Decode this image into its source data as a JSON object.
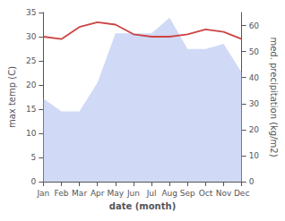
{
  "chart_data": {
    "type": "line",
    "categories": [
      "Jan",
      "Feb",
      "Mar",
      "Apr",
      "May",
      "Jun",
      "Jul",
      "Aug",
      "Sep",
      "Oct",
      "Nov",
      "Dec"
    ],
    "series": [
      {
        "type": "area",
        "axis": "y2",
        "color": "#aabbee",
        "values": [
          32,
          27,
          27,
          38,
          57,
          57,
          57,
          63,
          51,
          51,
          53,
          42
        ]
      },
      {
        "type": "line",
        "color": "#cc4444",
        "values": [
          30.0,
          29.5,
          32.0,
          33.0,
          32.5,
          30.5,
          30.0,
          30.0,
          30.5,
          31.5,
          31.0,
          29.5
        ]
      }
    ],
    "xlabel": "date (month)",
    "ylabel": "max temp (C)",
    "y2label": "med. precipitation (kg/m2)",
    "ylim": [
      0,
      35
    ],
    "yticks": [
      0,
      5,
      10,
      15,
      20,
      25,
      30,
      35
    ],
    "y2lim": [
      0,
      65
    ],
    "y2ticks": [
      0,
      10,
      20,
      30,
      40,
      50,
      60
    ],
    "grid": false
  }
}
